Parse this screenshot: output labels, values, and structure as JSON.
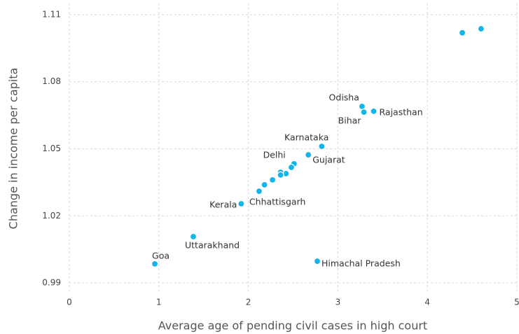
{
  "chart_data": {
    "type": "scatter",
    "x_label": "Average age of pending civil cases in high court",
    "y_label": "Change in income per capita",
    "x": [
      4.39,
      4.6,
      3.27,
      3.29,
      3.4,
      2.82,
      2.67,
      2.51,
      2.48,
      2.42,
      2.36,
      2.36,
      2.27,
      2.18,
      2.12,
      1.92,
      1.385,
      0.955,
      2.77
    ],
    "values": [
      1.1019,
      1.1037,
      1.069,
      1.0664,
      1.0668,
      1.0511,
      1.0473,
      1.0433,
      1.0417,
      1.0389,
      1.0395,
      1.0383,
      1.0361,
      1.0339,
      1.031,
      1.0254,
      1.0107,
      0.9985,
      0.9997
    ],
    "labels": [
      null,
      null,
      "Odisha",
      "Bihar",
      "Rajasthan",
      "Karnataka",
      "Gujarat",
      "Delhi",
      null,
      null,
      null,
      null,
      null,
      null,
      "Chhattisgarh",
      "Kerala",
      "Uttarakhand",
      "Goa",
      "Himachal Pradesh"
    ],
    "color": "#12b5ea",
    "xlim": [
      0,
      5
    ],
    "xticks": [
      0,
      1,
      2,
      3,
      4,
      5
    ],
    "ylim": [
      0.985,
      1.115
    ],
    "yticks": [
      0.99,
      1.02,
      1.05,
      1.08,
      1.11
    ],
    "grid": true
  }
}
